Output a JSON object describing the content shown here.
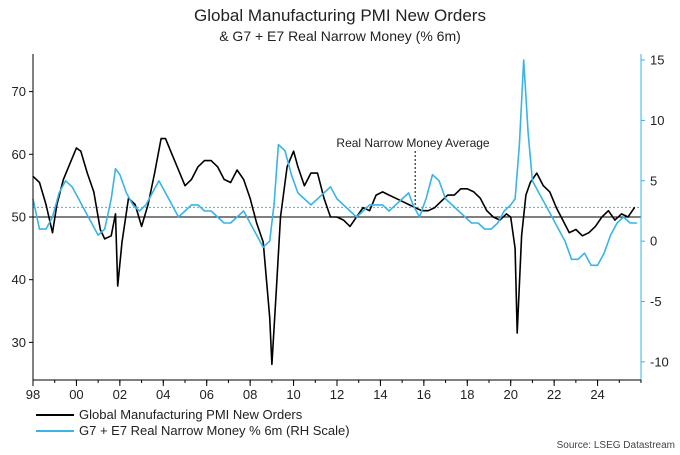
{
  "chart_data": {
    "type": "line",
    "title": "Global Manufacturing PMI New Orders",
    "subtitle": "& G7 + E7 Real Narrow Money (% 6m)",
    "source": "Source: LSEG Datastream",
    "annotation": {
      "text": "Real Narrow Money Average",
      "x": 2015.6
    },
    "xlim": [
      1998,
      2026
    ],
    "x_tick_values": [
      1998,
      2000,
      2002,
      2004,
      2006,
      2008,
      2010,
      2012,
      2014,
      2016,
      2018,
      2020,
      2022,
      2024
    ],
    "x_tick_labels": [
      "98",
      "00",
      "02",
      "04",
      "06",
      "08",
      "10",
      "12",
      "14",
      "16",
      "18",
      "20",
      "22",
      "24"
    ],
    "y_left": {
      "lim": [
        24,
        76
      ],
      "ticks": [
        30,
        40,
        50,
        60,
        70
      ],
      "tick_labels": [
        "30",
        "40",
        "50",
        "60",
        "70"
      ],
      "reference_line": 50
    },
    "y_right": {
      "lim": [
        -11.5,
        15.5
      ],
      "ticks": [
        -10,
        -5,
        0,
        5,
        10,
        15
      ],
      "tick_labels": [
        "-10",
        "-5",
        "0",
        "5",
        "10",
        "15"
      ],
      "reference_line": 2.8
    },
    "colors": {
      "pmi": "#000000",
      "money": "#3ab3e8",
      "reference": "#000000",
      "average": "#3ab3e8"
    },
    "series": [
      {
        "name": "Global Manufacturing PMI New Orders",
        "axis": "left",
        "color": "#000000",
        "x": [
          1998.0,
          1998.3,
          1998.6,
          1998.9,
          1999.1,
          1999.4,
          1999.7,
          2000.0,
          2000.2,
          2000.5,
          2000.8,
          2001.1,
          2001.3,
          2001.6,
          2001.8,
          2001.9,
          2002.1,
          2002.4,
          2002.7,
          2003.0,
          2003.3,
          2003.6,
          2003.9,
          2004.1,
          2004.4,
          2004.7,
          2005.0,
          2005.3,
          2005.6,
          2005.9,
          2006.2,
          2006.5,
          2006.8,
          2007.1,
          2007.4,
          2007.7,
          2008.0,
          2008.3,
          2008.6,
          2008.9,
          2009.0,
          2009.2,
          2009.4,
          2009.7,
          2010.0,
          2010.2,
          2010.5,
          2010.8,
          2011.1,
          2011.4,
          2011.7,
          2012.0,
          2012.3,
          2012.6,
          2012.9,
          2013.2,
          2013.5,
          2013.8,
          2014.1,
          2014.4,
          2014.7,
          2015.0,
          2015.3,
          2015.6,
          2015.9,
          2016.2,
          2016.5,
          2016.8,
          2017.1,
          2017.4,
          2017.7,
          2018.0,
          2018.3,
          2018.6,
          2018.9,
          2019.2,
          2019.5,
          2019.8,
          2020.0,
          2020.2,
          2020.3,
          2020.5,
          2020.7,
          2020.9,
          2021.2,
          2021.5,
          2021.8,
          2022.1,
          2022.4,
          2022.7,
          2023.0,
          2023.3,
          2023.6,
          2023.9,
          2024.2,
          2024.5,
          2024.8,
          2025.1,
          2025.4,
          2025.7
        ],
        "values": [
          56.5,
          55.5,
          52.0,
          47.5,
          52.0,
          56.0,
          58.5,
          61.0,
          60.5,
          57.0,
          54.0,
          48.0,
          46.5,
          47.0,
          50.5,
          39.0,
          46.0,
          53.0,
          52.0,
          48.5,
          52.0,
          57.0,
          62.5,
          62.5,
          60.0,
          57.5,
          55.0,
          56.0,
          58.0,
          59.0,
          59.0,
          58.0,
          56.0,
          55.5,
          57.5,
          56.0,
          53.0,
          49.0,
          46.0,
          34.0,
          26.5,
          38.0,
          50.0,
          58.0,
          60.5,
          58.0,
          55.0,
          57.0,
          57.0,
          53.0,
          50.0,
          50.0,
          49.5,
          48.5,
          50.0,
          51.5,
          51.0,
          53.5,
          54.0,
          53.5,
          53.0,
          52.5,
          52.0,
          51.5,
          51.0,
          51.0,
          51.5,
          52.5,
          53.5,
          53.5,
          54.5,
          54.5,
          54.0,
          53.0,
          51.0,
          50.0,
          49.5,
          50.5,
          50.0,
          45.0,
          31.5,
          47.0,
          53.5,
          55.5,
          57.0,
          55.0,
          54.0,
          51.5,
          49.5,
          47.5,
          48.0,
          47.0,
          47.5,
          48.5,
          50.0,
          51.0,
          49.5,
          50.5,
          50.0,
          51.5
        ]
      },
      {
        "name": "G7 + E7 Real Narrow Money % 6m (RH Scale)",
        "axis": "right",
        "color": "#3ab3e8",
        "x": [
          1998.0,
          1998.3,
          1998.6,
          1998.9,
          1999.2,
          1999.5,
          1999.8,
          2000.1,
          2000.4,
          2000.7,
          2001.0,
          2001.3,
          2001.6,
          2001.8,
          2002.0,
          2002.3,
          2002.6,
          2002.9,
          2003.2,
          2003.5,
          2003.8,
          2004.1,
          2004.4,
          2004.7,
          2005.0,
          2005.3,
          2005.6,
          2005.9,
          2006.2,
          2006.5,
          2006.8,
          2007.1,
          2007.4,
          2007.7,
          2008.0,
          2008.3,
          2008.6,
          2008.9,
          2009.1,
          2009.3,
          2009.6,
          2009.9,
          2010.2,
          2010.5,
          2010.8,
          2011.1,
          2011.4,
          2011.7,
          2012.0,
          2012.3,
          2012.6,
          2012.9,
          2013.2,
          2013.5,
          2013.8,
          2014.1,
          2014.4,
          2014.7,
          2015.0,
          2015.3,
          2015.5,
          2015.8,
          2016.1,
          2016.4,
          2016.7,
          2017.0,
          2017.3,
          2017.6,
          2017.9,
          2018.2,
          2018.5,
          2018.8,
          2019.1,
          2019.4,
          2019.7,
          2020.0,
          2020.2,
          2020.4,
          2020.6,
          2020.8,
          2021.0,
          2021.3,
          2021.6,
          2021.9,
          2022.2,
          2022.5,
          2022.8,
          2023.1,
          2023.4,
          2023.7,
          2024.0,
          2024.3,
          2024.6,
          2024.9,
          2025.2,
          2025.5,
          2025.8
        ],
        "values": [
          3.5,
          1.0,
          1.0,
          2.0,
          4.0,
          5.0,
          4.5,
          3.5,
          2.5,
          1.5,
          0.5,
          1.0,
          3.5,
          6.0,
          5.5,
          4.0,
          3.0,
          2.5,
          3.0,
          4.0,
          5.0,
          4.0,
          3.0,
          2.0,
          2.5,
          3.0,
          3.0,
          2.5,
          2.5,
          2.0,
          1.5,
          1.5,
          2.0,
          2.5,
          1.5,
          0.5,
          -0.5,
          0.0,
          3.0,
          8.0,
          7.5,
          5.5,
          4.0,
          3.5,
          3.0,
          3.5,
          4.0,
          4.5,
          3.5,
          3.0,
          2.5,
          2.0,
          2.5,
          3.0,
          3.0,
          3.0,
          2.5,
          3.0,
          3.5,
          4.0,
          3.0,
          2.0,
          3.5,
          5.5,
          5.0,
          3.5,
          3.0,
          2.5,
          2.0,
          1.5,
          1.5,
          1.0,
          1.0,
          1.5,
          2.5,
          3.0,
          3.5,
          8.0,
          15.0,
          9.0,
          5.0,
          4.0,
          3.0,
          2.0,
          1.0,
          0.0,
          -1.5,
          -1.5,
          -1.0,
          -2.0,
          -2.0,
          -1.0,
          0.5,
          1.5,
          2.0,
          1.5,
          1.5
        ]
      }
    ],
    "legend": {
      "placement": "bottom-left",
      "entries": [
        "Global Manufacturing PMI New Orders",
        "G7 + E7 Real Narrow Money % 6m (RH Scale)"
      ]
    }
  }
}
